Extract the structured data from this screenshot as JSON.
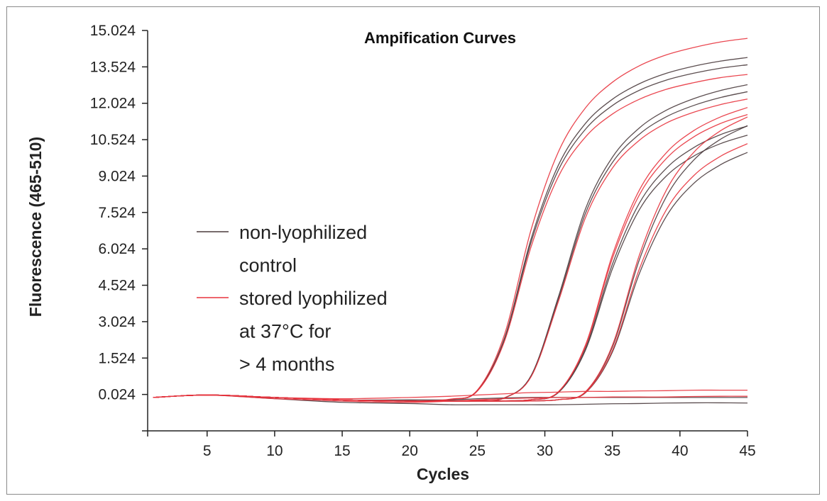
{
  "chart_data": {
    "type": "line",
    "title": "Ampification Curves",
    "xlabel": "Cycles",
    "ylabel": "Fluorescence (465-510)",
    "xlim": [
      0.6,
      45
    ],
    "ylim": [
      -1.476,
      15.024
    ],
    "xticks": [
      5,
      10,
      15,
      20,
      25,
      30,
      35,
      40,
      45
    ],
    "yticks": [
      0.024,
      1.524,
      3.024,
      4.524,
      6.024,
      7.524,
      9.024,
      10.524,
      12.024,
      13.524,
      15.024
    ],
    "ytick_labels": [
      "0.024",
      "1.524",
      "3.024",
      "4.524",
      "6.024",
      "7.524",
      "9.024",
      "10.524",
      "12.024",
      "13.524",
      "15.024"
    ],
    "grid": false,
    "legend_placement": "center-left",
    "colors": {
      "non_lyophilized": "#4a3b3d",
      "stored_lyophilized": "#e8333d"
    },
    "legend": [
      {
        "key": "non_lyophilized",
        "lines": [
          "non-lyophilized",
          "control"
        ]
      },
      {
        "key": "stored_lyophilized",
        "lines": [
          "stored lyophilized",
          "at 37°C for",
          "> 4 months"
        ]
      }
    ],
    "x": [
      1,
      5,
      10,
      15,
      20,
      23,
      25,
      27,
      29,
      31,
      33,
      35,
      37,
      39,
      41,
      43,
      45
    ],
    "series": [
      {
        "group": "stored_lyophilized",
        "values": [
          -0.1,
          0,
          -0.1,
          -0.2,
          -0.25,
          -0.17,
          0.2,
          2.47,
          6.85,
          10.02,
          11.83,
          12.89,
          13.57,
          14.02,
          14.32,
          14.55,
          14.7
        ]
      },
      {
        "group": "non_lyophilized",
        "values": [
          -0.1,
          0,
          -0.1,
          -0.2,
          -0.25,
          -0.18,
          0.18,
          2.32,
          6.47,
          9.47,
          11.19,
          12.19,
          12.83,
          13.26,
          13.55,
          13.76,
          13.91
        ]
      },
      {
        "group": "non_lyophilized",
        "values": [
          -0.1,
          0,
          -0.1,
          -0.2,
          -0.25,
          -0.18,
          0.17,
          2.27,
          6.33,
          9.27,
          10.95,
          11.93,
          12.56,
          12.98,
          13.26,
          13.47,
          13.61
        ]
      },
      {
        "group": "stored_lyophilized",
        "values": [
          -0.1,
          0,
          -0.1,
          -0.2,
          -0.25,
          -0.18,
          0.16,
          2.2,
          6.14,
          9.0,
          10.63,
          11.58,
          12.19,
          12.6,
          12.87,
          13.08,
          13.21
        ]
      },
      {
        "group": "non_lyophilized",
        "values": [
          -0.1,
          0,
          -0.1,
          -0.2,
          -0.25,
          -0.25,
          -0.22,
          -0.12,
          0.82,
          4.04,
          7.66,
          9.8,
          11.01,
          11.74,
          12.21,
          12.55,
          12.79
        ]
      },
      {
        "group": "stored_lyophilized",
        "values": [
          -0.1,
          0,
          -0.1,
          -0.2,
          -0.25,
          -0.25,
          -0.22,
          -0.12,
          0.77,
          3.85,
          7.3,
          9.35,
          10.5,
          11.21,
          11.65,
          11.97,
          12.2
        ]
      },
      {
        "group": "non_lyophilized",
        "values": [
          -0.1,
          0,
          -0.1,
          -0.2,
          -0.25,
          -0.25,
          -0.22,
          -0.12,
          0.8,
          3.94,
          7.48,
          9.58,
          10.75,
          11.47,
          11.93,
          12.26,
          12.5
        ]
      },
      {
        "group": "stored_lyophilized",
        "values": [
          -0.1,
          0,
          -0.1,
          -0.2,
          -0.25,
          -0.25,
          -0.25,
          -0.24,
          -0.19,
          0.13,
          2.05,
          5.77,
          8.45,
          9.99,
          10.89,
          11.46,
          11.85
        ]
      },
      {
        "group": "non_lyophilized",
        "values": [
          -0.1,
          0,
          -0.1,
          -0.2,
          -0.25,
          -0.25,
          -0.25,
          -0.24,
          -0.19,
          0.11,
          1.91,
          5.39,
          7.91,
          9.35,
          10.19,
          10.73,
          11.09
        ]
      },
      {
        "group": "stored_lyophilized",
        "values": [
          -0.1,
          0,
          -0.1,
          -0.2,
          -0.25,
          -0.25,
          -0.25,
          -0.24,
          -0.19,
          0.13,
          2.0,
          5.63,
          8.25,
          9.75,
          10.63,
          11.19,
          11.56
        ]
      },
      {
        "group": "non_lyophilized",
        "values": [
          -0.1,
          0,
          -0.1,
          -0.2,
          -0.25,
          -0.25,
          -0.25,
          -0.24,
          -0.19,
          0.1,
          1.84,
          5.2,
          7.64,
          9.03,
          9.84,
          10.36,
          10.71
        ]
      },
      {
        "group": "stored_lyophilized",
        "values": [
          -0.1,
          0,
          -0.1,
          -0.2,
          -0.25,
          -0.25,
          -0.25,
          -0.25,
          -0.24,
          -0.19,
          0.13,
          2.05,
          5.77,
          8.45,
          9.99,
          10.89,
          11.46
        ]
      },
      {
        "group": "non_lyophilized",
        "values": [
          -0.1,
          0,
          -0.1,
          -0.2,
          -0.25,
          -0.25,
          -0.25,
          -0.25,
          -0.24,
          -0.19,
          0.12,
          1.98,
          5.58,
          8.18,
          9.67,
          10.54,
          11.1
        ]
      },
      {
        "group": "non_lyophilized",
        "values": [
          -0.1,
          0,
          -0.1,
          -0.2,
          -0.25,
          -0.25,
          -0.25,
          -0.25,
          -0.24,
          -0.19,
          0.09,
          1.77,
          5.01,
          7.37,
          8.71,
          9.49,
          10.0
        ]
      },
      {
        "group": "stored_lyophilized",
        "values": [
          -0.1,
          0,
          -0.1,
          -0.2,
          -0.25,
          -0.25,
          -0.25,
          -0.25,
          -0.24,
          -0.19,
          0.1,
          1.84,
          5.2,
          7.64,
          9.03,
          9.84,
          10.36
        ]
      },
      {
        "group": "stored_lyophilized",
        "values": [
          -0.1,
          0,
          -0.1,
          -0.15,
          -0.1,
          -0.05,
          0,
          0.05,
          0.1,
          0.12,
          0.15,
          0.15,
          0.17,
          0.18,
          0.2,
          0.2,
          0.2
        ]
      },
      {
        "group": "non_lyophilized",
        "values": [
          -0.1,
          0,
          -0.1,
          -0.2,
          -0.2,
          -0.2,
          -0.15,
          -0.12,
          -0.1,
          -0.1,
          -0.1,
          -0.1,
          -0.1,
          -0.1,
          -0.1,
          -0.1,
          -0.1
        ]
      },
      {
        "group": "stored_lyophilized",
        "values": [
          -0.1,
          0,
          -0.15,
          -0.25,
          -0.3,
          -0.25,
          -0.2,
          -0.15,
          -0.12,
          -0.1,
          -0.1,
          -0.08,
          -0.08,
          -0.08,
          -0.06,
          -0.05,
          -0.05
        ]
      },
      {
        "group": "non_lyophilized",
        "values": [
          -0.1,
          0,
          -0.15,
          -0.3,
          -0.35,
          -0.4,
          -0.4,
          -0.4,
          -0.4,
          -0.4,
          -0.38,
          -0.36,
          -0.35,
          -0.33,
          -0.32,
          -0.32,
          -0.33
        ]
      }
    ]
  }
}
